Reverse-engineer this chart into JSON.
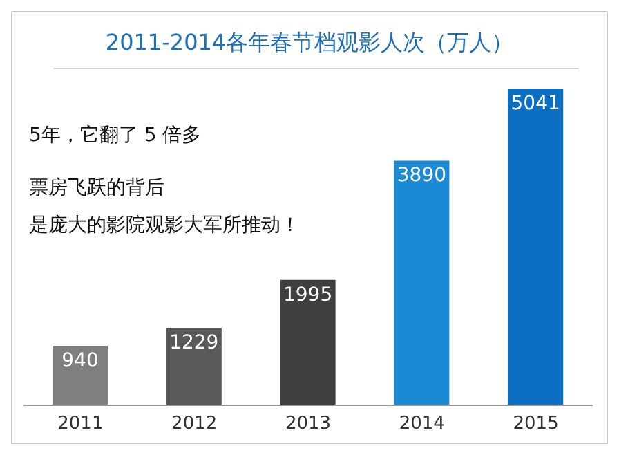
{
  "chart_data": {
    "type": "bar",
    "title": "2011-2014各年春节档观影人次（万人）",
    "categories": [
      "2011",
      "2012",
      "2013",
      "2014",
      "2015"
    ],
    "values": [
      940,
      1229,
      1995,
      3890,
      5041
    ],
    "colors": [
      "#7f7f7f",
      "#595959",
      "#3f3f3f",
      "#1a8ad4",
      "#0a6fc2"
    ],
    "data_labels": true,
    "annotations": [
      "5年，它翻了 5 倍多",
      "票房飞跃的背后",
      "是庞大的影院观影大军所推动！"
    ]
  }
}
